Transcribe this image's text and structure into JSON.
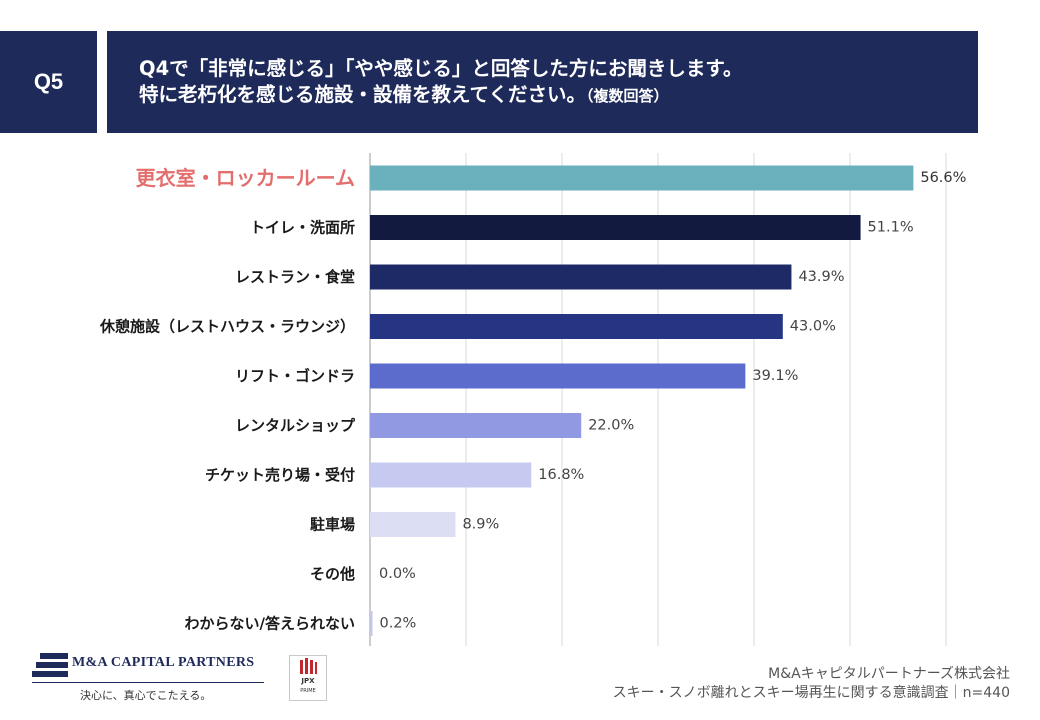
{
  "header": {
    "q_number": "Q5",
    "question_line1": "Q4で「非常に感じる」「やや感じる」と回答した方にお聞きします。",
    "question_line2": "特に老朽化を感じる施設・設備を教えてください。",
    "question_note": "（複数回答）"
  },
  "chart_data": {
    "type": "bar",
    "orientation": "horizontal",
    "categories": [
      "更衣室・ロッカールーム",
      "トイレ・洗面所",
      "レストラン・食堂",
      "休憩施設（レストハウス・ラウンジ）",
      "リフト・ゴンドラ",
      "レンタルショップ",
      "チケット売り場・受付",
      "駐車場",
      "その他",
      "わからない/答えられない"
    ],
    "values": [
      56.6,
      51.1,
      43.9,
      43.0,
      39.1,
      22.0,
      16.8,
      8.9,
      0.0,
      0.2
    ],
    "labels": [
      "56.6%",
      "51.1%",
      "43.9%",
      "43.0%",
      "39.1%",
      "22.0%",
      "16.8%",
      "8.9%",
      "0.0%",
      "0.2%"
    ],
    "colors": [
      "#6ab0bd",
      "#131a3f",
      "#1e2a66",
      "#253584",
      "#5b6ccc",
      "#9199e2",
      "#c6caf0",
      "#dcdff4",
      "#cccccc",
      "#c4c8e6"
    ],
    "highlight_index": 0,
    "highlight_color": "#e36e6e",
    "xlim": [
      0,
      60
    ],
    "grid": true,
    "unit": "%"
  },
  "footer": {
    "logo_text": "M&A CAPITAL PARTNERS",
    "logo_tagline": "決心に、真心でこたえる。",
    "jpx_text": "JPX",
    "jpx_sub": "PRIME",
    "source_company": "M&Aキャピタルパートナーズ株式会社",
    "source_survey": "スキー・スノボ離れとスキー場再生に関する意識調査｜n=440"
  }
}
